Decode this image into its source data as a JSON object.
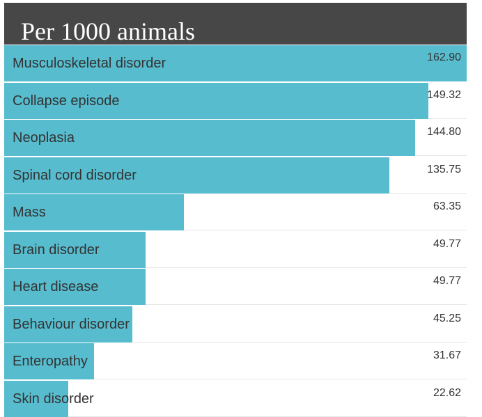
{
  "chart_data": {
    "type": "bar",
    "orientation": "horizontal",
    "title": "Per 1000 animals",
    "categories": [
      "Musculoskeletal disorder",
      "Collapse episode",
      "Neoplasia",
      "Spinal cord disorder",
      "Mass",
      "Brain disorder",
      "Heart disease",
      "Behaviour disorder",
      "Enteropathy",
      "Skin disorder"
    ],
    "values": [
      162.9,
      149.32,
      144.8,
      135.75,
      63.35,
      49.77,
      49.77,
      45.25,
      31.67,
      22.62
    ],
    "value_labels": [
      "162.90",
      "149.32",
      "144.80",
      "135.75",
      "63.35",
      "49.77",
      "49.77",
      "45.25",
      "31.67",
      "22.62"
    ],
    "xlim": [
      0,
      162.9
    ],
    "xlabel": "",
    "ylabel": "",
    "bar_color": "#57bcce",
    "title_background": "#474747"
  }
}
